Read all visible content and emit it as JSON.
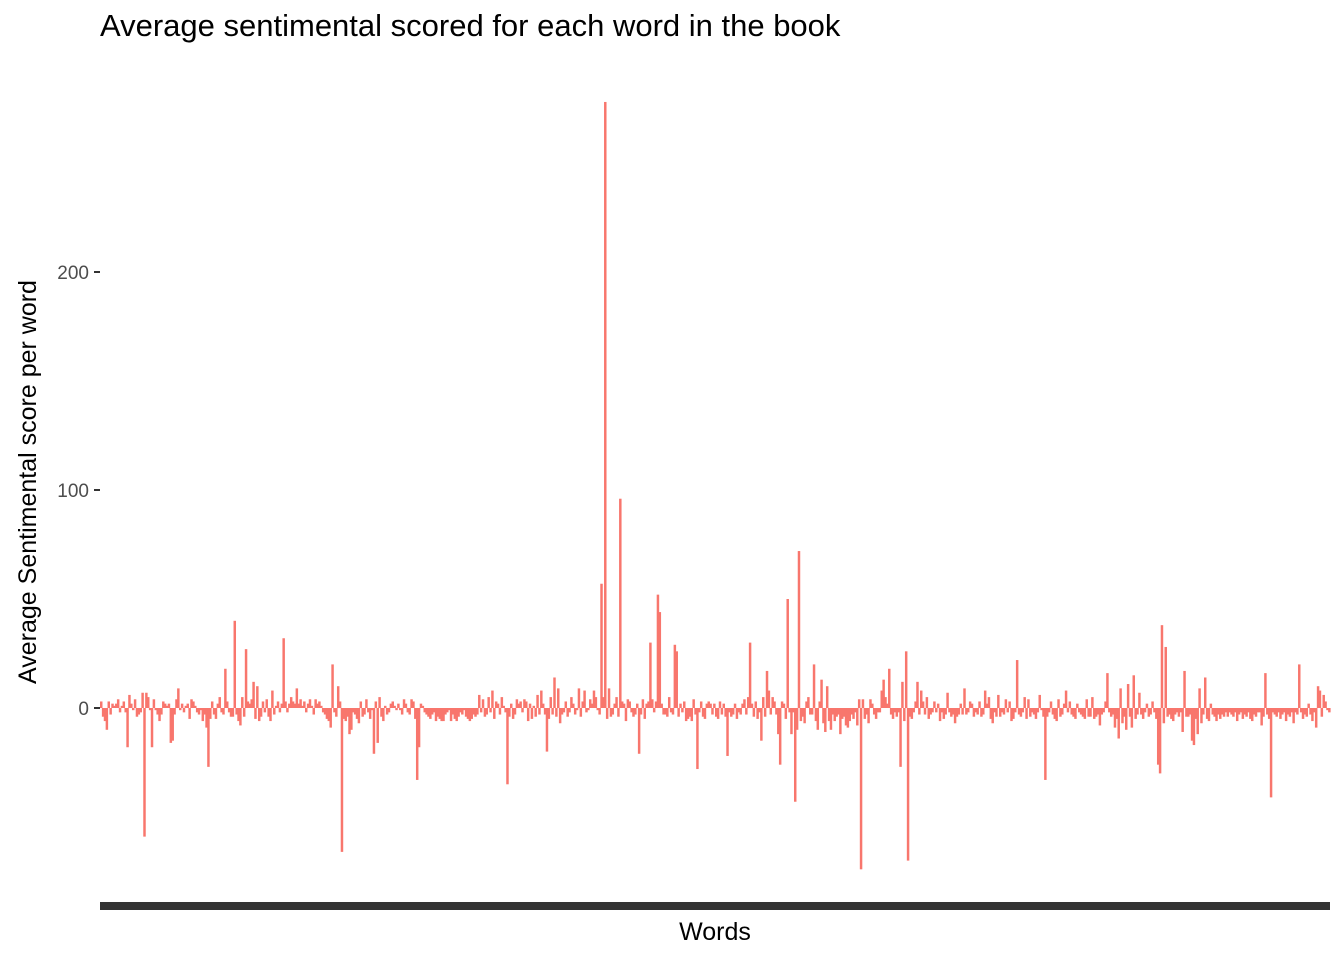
{
  "chart_data": {
    "type": "bar",
    "title": "Average sentimental scored for each word in the book",
    "xlabel": "Words",
    "ylabel": "Average Sentimental score per word",
    "ylim": [
      -88,
      282
    ],
    "yticks": [
      0,
      100,
      200
    ],
    "ytick_labels": [
      "0",
      "100",
      "200"
    ],
    "grid": false,
    "bar_color": "#f8766d",
    "x_tick_marks": "dense, unlabeled (one per word)",
    "values": [
      3,
      -4,
      -6,
      -10,
      3,
      -3,
      2,
      1,
      2,
      4,
      -2,
      1,
      3,
      -2,
      -18,
      6,
      2,
      -1,
      4,
      -4,
      -3,
      -2,
      7,
      -59,
      7,
      5,
      -1,
      -18,
      4,
      -1,
      -3,
      -6,
      -3,
      3,
      2,
      1,
      2,
      -16,
      -15,
      -3,
      4,
      9,
      -1,
      2,
      -2,
      1,
      2,
      -5,
      4,
      3,
      1,
      -2,
      -3,
      -1,
      -6,
      -3,
      -9,
      -27,
      -5,
      3,
      -3,
      -5,
      2,
      5,
      -2,
      -3,
      18,
      3,
      -2,
      -4,
      -4,
      40,
      -3,
      -6,
      -8,
      5,
      -4,
      27,
      3,
      2,
      4,
      12,
      -5,
      10,
      -6,
      -4,
      3,
      -2,
      4,
      -4,
      -6,
      8,
      -3,
      1,
      3,
      -2,
      2,
      32,
      3,
      -2,
      2,
      5,
      3,
      2,
      9,
      2,
      4,
      1,
      3,
      -2,
      2,
      4,
      1,
      -3,
      4,
      2,
      3,
      1,
      -2,
      -3,
      -5,
      -6,
      -9,
      20,
      -2,
      -4,
      10,
      3,
      -66,
      -5,
      -6,
      -4,
      -12,
      -10,
      -2,
      -3,
      -5,
      -7,
      3,
      -4,
      -3,
      4,
      -2,
      -5,
      -1,
      -21,
      3,
      -16,
      5,
      -4,
      -6,
      1,
      -3,
      -2,
      2,
      3,
      1,
      -1,
      2,
      -1,
      -3,
      4,
      2,
      -2,
      -3,
      4,
      3,
      -5,
      -33,
      -18,
      2,
      1,
      -2,
      -3,
      -4,
      -5,
      -3,
      -2,
      -6,
      -4,
      -5,
      -6,
      -6,
      -3,
      -2,
      -1,
      -6,
      -3,
      -5,
      -6,
      -4,
      -2,
      -3,
      -1,
      -4,
      -5,
      -6,
      -5,
      -3,
      -4,
      -3,
      6,
      -2,
      4,
      -4,
      -3,
      5,
      -2,
      8,
      -5,
      3,
      2,
      -3,
      5,
      1,
      -2,
      -35,
      -4,
      2,
      -5,
      -3,
      4,
      2,
      3,
      -2,
      4,
      3,
      -6,
      2,
      -5,
      1,
      -4,
      6,
      -3,
      8,
      2,
      -3,
      -20,
      -5,
      5,
      -3,
      14,
      -4,
      9,
      -7,
      -3,
      -2,
      3,
      -4,
      -2,
      5,
      2,
      -3,
      -1,
      9,
      -4,
      3,
      8,
      -2,
      -1,
      4,
      2,
      8,
      5,
      -1,
      -3,
      57,
      5,
      278,
      -5,
      9,
      -4,
      -3,
      2,
      5,
      -4,
      96,
      3,
      2,
      -6,
      4,
      3,
      -2,
      -4,
      -3,
      2,
      -21,
      -3,
      4,
      -5,
      2,
      3,
      30,
      4,
      -2,
      3,
      52,
      44,
      2,
      -3,
      -3,
      -4,
      5,
      -2,
      -3,
      29,
      26,
      -4,
      2,
      -2,
      3,
      -6,
      -5,
      -4,
      -6,
      4,
      -3,
      -28,
      -2,
      3,
      -4,
      -5,
      2,
      3,
      2,
      -3,
      2,
      -4,
      -5,
      3,
      -3,
      2,
      -4,
      -22,
      -2,
      -4,
      -3,
      2,
      -5,
      -2,
      -3,
      2,
      4,
      -3,
      5,
      30,
      2,
      -4,
      3,
      -5,
      -2,
      -15,
      5,
      -4,
      17,
      8,
      -3,
      5,
      3,
      -3,
      -12,
      -26,
      3,
      2,
      -5,
      50,
      -2,
      -12,
      -2,
      -43,
      -10,
      72,
      -6,
      -4,
      -7,
      3,
      5,
      -3,
      -3,
      20,
      -6,
      -10,
      3,
      13,
      -7,
      -11,
      10,
      -6,
      -10,
      -3,
      -6,
      -4,
      -3,
      -12,
      -5,
      -4,
      -8,
      -9,
      -6,
      -3,
      -5,
      -2,
      -8,
      4,
      -74,
      4,
      -5,
      -3,
      -7,
      4,
      2,
      -3,
      -5,
      -2,
      -2,
      8,
      13,
      5,
      2,
      18,
      -3,
      -5,
      -2,
      -4,
      -2,
      -27,
      12,
      -6,
      26,
      -70,
      -4,
      -5,
      -2,
      3,
      12,
      -3,
      8,
      3,
      -3,
      5,
      -5,
      -3,
      -2,
      3,
      -2,
      2,
      -6,
      -2,
      -5,
      -3,
      7,
      -2,
      -4,
      -3,
      -7,
      -4,
      -3,
      2,
      -3,
      9,
      -3,
      -2,
      3,
      2,
      -4,
      -2,
      -3,
      3,
      -4,
      -3,
      8,
      2,
      5,
      -5,
      -7,
      -2,
      -4,
      6,
      -4,
      -2,
      -3,
      4,
      -2,
      3,
      -6,
      -5,
      -2,
      22,
      -3,
      -4,
      -2,
      5,
      -5,
      4,
      -4,
      -2,
      -3,
      -5,
      -2,
      6,
      -1,
      -4,
      -33,
      -4,
      -2,
      3,
      -3,
      -5,
      -6,
      4,
      -4,
      -3,
      2,
      8,
      -2,
      3,
      -3,
      -4,
      -5,
      2,
      -2,
      -3,
      -4,
      -5,
      4,
      -4,
      -4,
      5,
      -5,
      -4,
      -3,
      -8,
      -3,
      -2,
      3,
      16,
      -2,
      -4,
      -3,
      -9,
      -5,
      -14,
      9,
      -7,
      -4,
      -10,
      11,
      -4,
      -9,
      15,
      -5,
      -3,
      7,
      -3,
      -5,
      -2,
      2,
      -4,
      -3,
      3,
      -2,
      -5,
      -26,
      -30,
      38,
      -7,
      28,
      -4,
      -3,
      -5,
      -6,
      -3,
      -2,
      -4,
      -2,
      -11,
      17,
      -4,
      -4,
      -3,
      -15,
      -17,
      -5,
      -12,
      9,
      -7,
      -3,
      14,
      -5,
      -6,
      2,
      -3,
      -4,
      -6,
      -3,
      -5,
      -3,
      -4,
      -2,
      -4,
      -2,
      -3,
      -4,
      -2,
      -6,
      -3,
      -2,
      -5,
      -3,
      -4,
      -2,
      -5,
      -6,
      -3,
      -4,
      -2,
      -2,
      -8,
      -4,
      16,
      -3,
      -5,
      -41,
      -2,
      -3,
      -4,
      -2,
      -5,
      -3,
      -2,
      -6,
      -3,
      -4,
      -2,
      -7,
      -2,
      -3,
      20,
      -2,
      -5,
      -3,
      -4,
      2,
      -3,
      -6,
      -2,
      -9,
      10,
      8,
      -4,
      6,
      3,
      -1,
      -2
    ]
  }
}
